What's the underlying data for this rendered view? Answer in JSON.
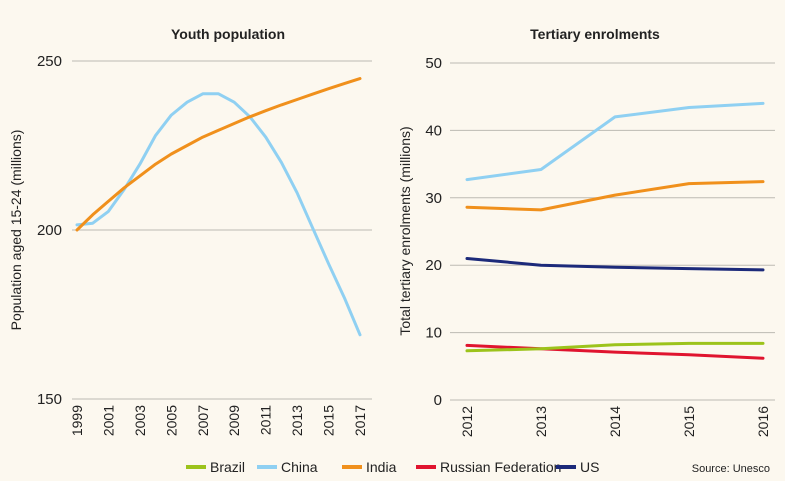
{
  "colors": {
    "background": "#fcf8ef",
    "grid": "#bdbab3",
    "Brazil": "#9cc31b",
    "China": "#8fd0f2",
    "India": "#f0901c",
    "Russian Federation": "#e0142f",
    "US": "#1c2a7a"
  },
  "legend": {
    "items": [
      "Brazil",
      "China",
      "India",
      "Russian Federation",
      "US"
    ],
    "placement": "bottom"
  },
  "source": "Source: Unesco",
  "chart_data": [
    {
      "type": "line",
      "title": "Youth population",
      "xlabel": "",
      "ylabel": "Population aged 15-24 (millions)",
      "xlim": [
        1999,
        2017
      ],
      "ylim": [
        150,
        250
      ],
      "yticks": [
        "150",
        "200",
        "250"
      ],
      "xticks": [
        "1999",
        "2001",
        "2003",
        "2005",
        "2007",
        "2009",
        "2011",
        "2013",
        "2015",
        "2017"
      ],
      "grid": true,
      "x": [
        1999,
        2000,
        2001,
        2002,
        2003,
        2004,
        2005,
        2006,
        2007,
        2008,
        2009,
        2010,
        2011,
        2012,
        2013,
        2014,
        2015,
        2016,
        2017
      ],
      "series": [
        {
          "name": "China",
          "values": [
            201.5,
            202,
            205.5,
            212,
            219.5,
            228,
            234,
            237.8,
            240.3,
            240.3,
            237.8,
            233.5,
            227.5,
            220,
            211,
            200.5,
            190,
            180,
            169
          ]
        },
        {
          "name": "India",
          "values": [
            200,
            204.5,
            208.5,
            212.5,
            216,
            219.5,
            222.5,
            225,
            227.5,
            229.5,
            231.5,
            233.5,
            235.3,
            237,
            238.6,
            240.2,
            241.8,
            243.3,
            244.8
          ]
        }
      ]
    },
    {
      "type": "line",
      "title": "Tertiary enrolments",
      "xlabel": "",
      "ylabel": "Total tertiary enrolments (millions)",
      "xlim": [
        2012,
        2016
      ],
      "ylim": [
        0,
        50
      ],
      "yticks": [
        "0",
        "10",
        "20",
        "30",
        "40",
        "50"
      ],
      "xticks": [
        "2012",
        "2013",
        "2014",
        "2015",
        "2016"
      ],
      "grid": true,
      "x": [
        2012,
        2013,
        2014,
        2015,
        2016
      ],
      "series": [
        {
          "name": "China",
          "values": [
            32.7,
            34.2,
            42.0,
            43.4,
            44.0
          ]
        },
        {
          "name": "India",
          "values": [
            28.6,
            28.2,
            30.4,
            32.1,
            32.4
          ]
        },
        {
          "name": "US",
          "values": [
            21.0,
            20.0,
            19.7,
            19.5,
            19.3
          ]
        },
        {
          "name": "Russian Federation",
          "values": [
            8.1,
            7.6,
            7.1,
            6.7,
            6.2
          ]
        },
        {
          "name": "Brazil",
          "values": [
            7.3,
            7.6,
            8.2,
            8.4,
            8.4
          ]
        }
      ]
    }
  ]
}
